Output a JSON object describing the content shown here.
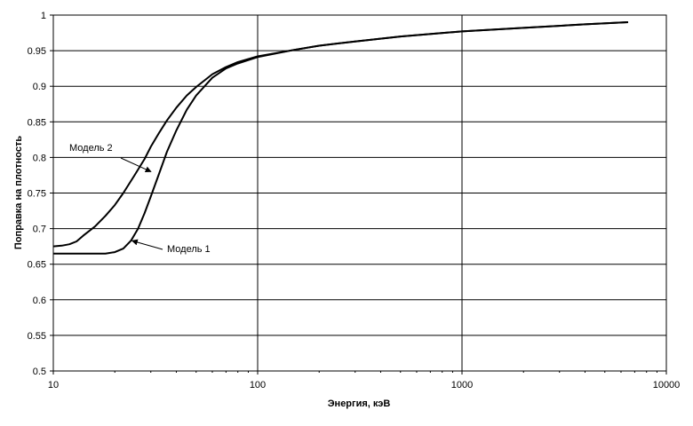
{
  "chart_data": {
    "type": "line",
    "title": "",
    "xlabel": "Энергия, кэВ",
    "ylabel": "Поправка на плотность",
    "x_scale": "log",
    "xlim": [
      10,
      10000
    ],
    "ylim": [
      0.5,
      1
    ],
    "grid": true,
    "x_ticks": [
      10,
      100,
      1000,
      10000
    ],
    "x_tick_labels": [
      "10",
      "100",
      "1000",
      "10000"
    ],
    "y_ticks": [
      0.5,
      0.55,
      0.6,
      0.65,
      0.7,
      0.75,
      0.8,
      0.85,
      0.9,
      0.95,
      1
    ],
    "y_tick_labels": [
      "0.5",
      "0.55",
      "0.6",
      "0.65",
      "0.7",
      "0.75",
      "0.8",
      "0.85",
      "0.9",
      "0.95",
      "1"
    ],
    "series": [
      {
        "name": "Модель 1",
        "x": [
          10,
          12,
          15,
          18,
          20,
          22,
          24,
          26,
          28,
          30,
          33,
          36,
          40,
          45,
          50,
          60,
          70,
          80,
          100,
          150,
          200,
          300,
          500,
          1000,
          2000,
          4000,
          6500
        ],
        "y": [
          0.665,
          0.665,
          0.665,
          0.665,
          0.667,
          0.672,
          0.683,
          0.7,
          0.722,
          0.745,
          0.778,
          0.808,
          0.838,
          0.867,
          0.887,
          0.912,
          0.925,
          0.932,
          0.941,
          0.951,
          0.957,
          0.963,
          0.97,
          0.977,
          0.982,
          0.987,
          0.99
        ]
      },
      {
        "name": "Модель 2",
        "x": [
          10,
          11,
          12,
          13,
          14,
          16,
          18,
          20,
          22,
          25,
          28,
          30,
          33,
          36,
          40,
          45,
          50,
          60,
          70,
          80,
          100,
          150,
          200,
          300,
          500,
          1000,
          2000,
          4000,
          6500
        ],
        "y": [
          0.675,
          0.676,
          0.678,
          0.682,
          0.69,
          0.703,
          0.718,
          0.733,
          0.75,
          0.775,
          0.798,
          0.815,
          0.835,
          0.852,
          0.87,
          0.887,
          0.899,
          0.917,
          0.927,
          0.934,
          0.942,
          0.951,
          0.957,
          0.963,
          0.97,
          0.977,
          0.982,
          0.987,
          0.99
        ]
      }
    ],
    "annotations": [
      {
        "text": "Модель 2",
        "series": 1
      },
      {
        "text": "Модель 1",
        "series": 0
      }
    ]
  }
}
